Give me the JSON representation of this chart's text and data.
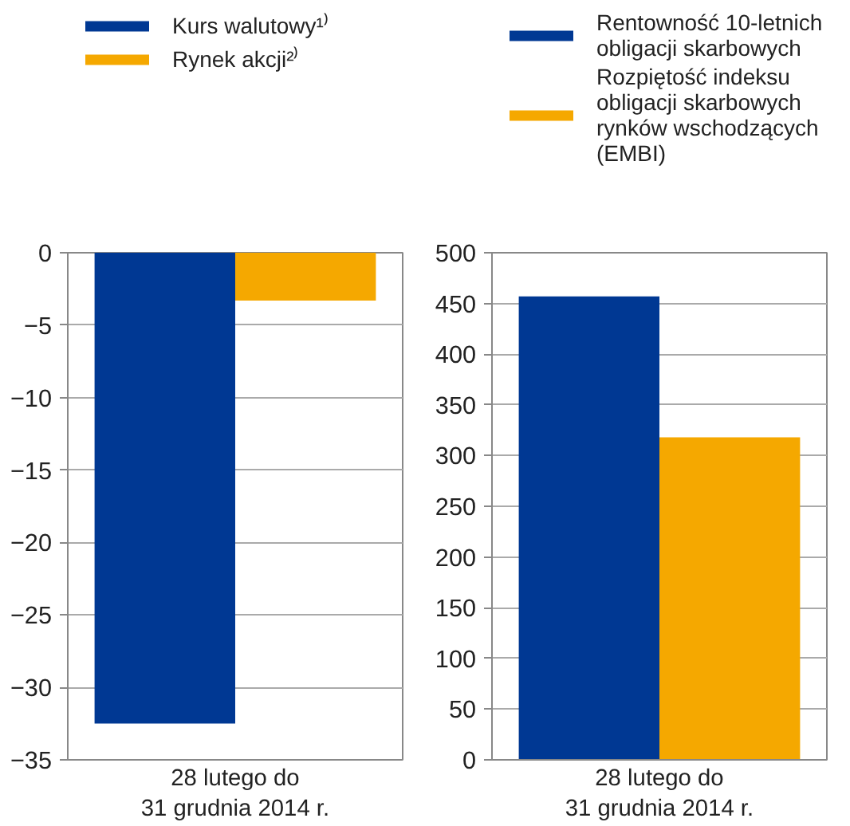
{
  "chart_data": [
    {
      "type": "bar",
      "categories": [
        "28 lutego do\n31 grudnia 2014 r."
      ],
      "series": [
        {
          "name": "Kurs walutowy¹⁾",
          "color": "#003893",
          "values": [
            -32.5
          ]
        },
        {
          "name": "Rynek akcji²⁾",
          "color": "#f5a800",
          "values": [
            -3.3
          ]
        }
      ],
      "ylim": [
        -35,
        0
      ],
      "yticks": [
        -35,
        -30,
        -25,
        -20,
        -15,
        -10,
        -5,
        0
      ],
      "grid": "y",
      "legend": "top"
    },
    {
      "type": "bar",
      "categories": [
        "28 lutego do\n31 grudnia 2014 r."
      ],
      "series": [
        {
          "name": "Rentowność 10-letnich\nobligacji skarbowych",
          "color": "#003893",
          "values": [
            457
          ]
        },
        {
          "name": "Rozpiętość indeksu\nobligacji skarbowych\nrynków wschodzących\n(EMBI)",
          "color": "#f5a800",
          "values": [
            318
          ]
        }
      ],
      "ylim": [
        0,
        500
      ],
      "yticks": [
        0,
        50,
        100,
        150,
        200,
        250,
        300,
        350,
        400,
        450,
        500
      ],
      "grid": "y",
      "legend": "top"
    }
  ]
}
